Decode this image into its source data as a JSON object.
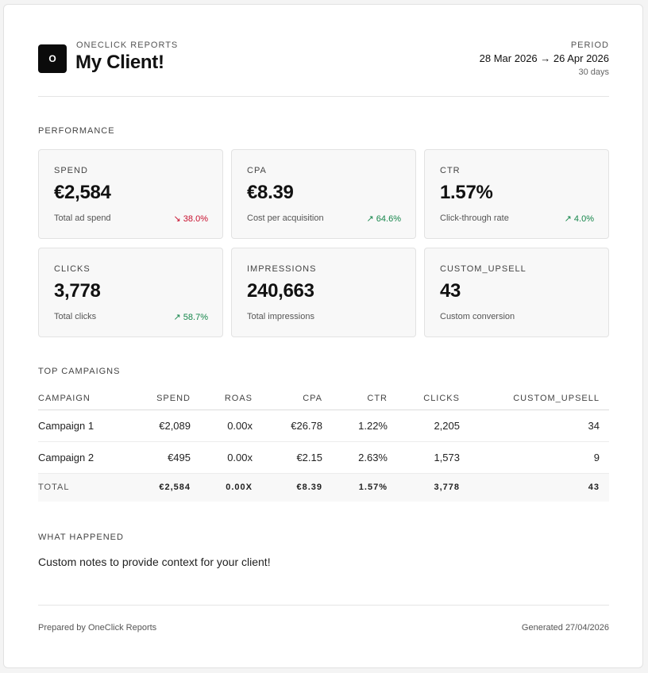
{
  "header": {
    "logo_letter": "O",
    "brand": "ONECLICK REPORTS",
    "client": "My Client!",
    "period_label": "PERIOD",
    "period_range": "28 Mar 2026 → 26 Apr 2026",
    "period_days": "30 days"
  },
  "performance": {
    "title": "PERFORMANCE",
    "metrics": [
      {
        "label": "SPEND",
        "value": "€2,584",
        "desc": "Total ad spend",
        "delta": "↘ 38.0%",
        "trend": "down"
      },
      {
        "label": "CPA",
        "value": "€8.39",
        "desc": "Cost per acquisition",
        "delta": "↗ 64.6%",
        "trend": "up"
      },
      {
        "label": "CTR",
        "value": "1.57%",
        "desc": "Click-through rate",
        "delta": "↗ 4.0%",
        "trend": "up"
      },
      {
        "label": "CLICKS",
        "value": "3,778",
        "desc": "Total clicks",
        "delta": "↗ 58.7%",
        "trend": "up"
      },
      {
        "label": "IMPRESSIONS",
        "value": "240,663",
        "desc": "Total impressions",
        "delta": "",
        "trend": "none"
      },
      {
        "label": "CUSTOM_UPSELL",
        "value": "43",
        "desc": "Custom conversion",
        "delta": "",
        "trend": "none"
      }
    ]
  },
  "campaigns": {
    "title": "TOP CAMPAIGNS",
    "columns": [
      "CAMPAIGN",
      "SPEND",
      "ROAS",
      "CPA",
      "CTR",
      "CLICKS",
      "CUSTOM_UPSELL"
    ],
    "rows": [
      [
        "Campaign 1",
        "€2,089",
        "0.00x",
        "€26.78",
        "1.22%",
        "2,205",
        "34"
      ],
      [
        "Campaign 2",
        "€495",
        "0.00x",
        "€2.15",
        "2.63%",
        "1,573",
        "9"
      ]
    ],
    "total": [
      "TOTAL",
      "€2,584",
      "0.00X",
      "€8.39",
      "1.57%",
      "3,778",
      "43"
    ]
  },
  "notes": {
    "title": "WHAT HAPPENED",
    "text": "Custom notes to provide context for your client!"
  },
  "footer": {
    "prepared": "Prepared by OneClick Reports",
    "generated": "Generated 27/04/2026"
  },
  "colors": {
    "negative": "#c8102e",
    "positive": "#16864b",
    "logo_bg": "#0b0b0b"
  }
}
